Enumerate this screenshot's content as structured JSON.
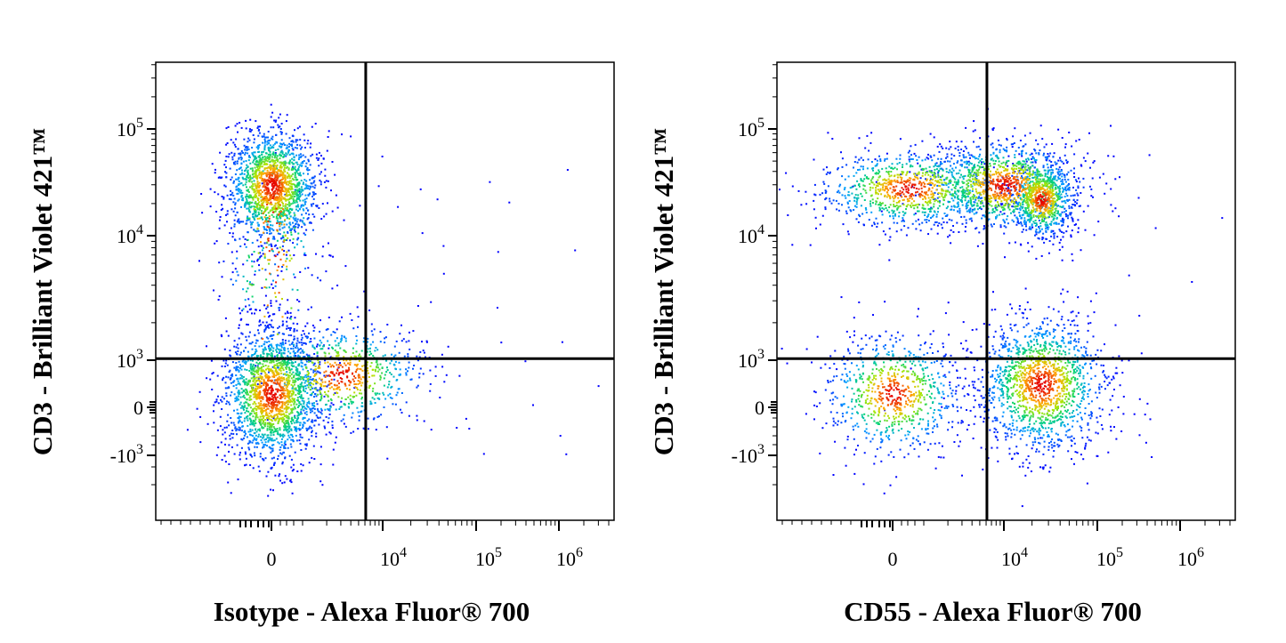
{
  "chart_data": [
    {
      "type": "scatter",
      "subtype": "flow-cytometry-density-dot-plot",
      "xlabel": "Isotype - Alexa Fluor® 700",
      "ylabel": "CD3 - Brilliant Violet 421™",
      "x_ticks": [
        "0",
        "10^4",
        "10^5",
        "10^6"
      ],
      "y_ticks": [
        "10^5",
        "10^4",
        "10^3",
        "0",
        "-10^3"
      ],
      "x_scale": "biexponential",
      "y_scale": "biexponential",
      "quadrant_gate": {
        "x": 3000,
        "y": 3000
      },
      "populations": [
        {
          "x_center": 0,
          "y_center": 30000,
          "density": "high"
        },
        {
          "x_center": 0,
          "y_center": 300,
          "density": "high"
        },
        {
          "x_center": 3000,
          "y_center": 700,
          "density": "low"
        }
      ]
    },
    {
      "type": "scatter",
      "subtype": "flow-cytometry-density-dot-plot",
      "xlabel": "CD55 - Alexa Fluor® 700",
      "ylabel": "CD3 - Brilliant Violet 421™",
      "x_ticks": [
        "0",
        "10^4",
        "10^5",
        "10^6"
      ],
      "y_ticks": [
        "10^5",
        "10^4",
        "10^3",
        "0",
        "-10^3"
      ],
      "x_scale": "biexponential",
      "y_scale": "biexponential",
      "quadrant_gate": {
        "x": 3000,
        "y": 3000
      },
      "populations": [
        {
          "x_center": 500,
          "y_center": 28000,
          "density": "medium"
        },
        {
          "x_center": 10000,
          "y_center": 30000,
          "density": "medium"
        },
        {
          "x_center": 25000,
          "y_center": 22000,
          "density": "high"
        },
        {
          "x_center": 0,
          "y_center": 300,
          "density": "medium"
        },
        {
          "x_center": 25000,
          "y_center": 500,
          "density": "high"
        }
      ]
    }
  ]
}
